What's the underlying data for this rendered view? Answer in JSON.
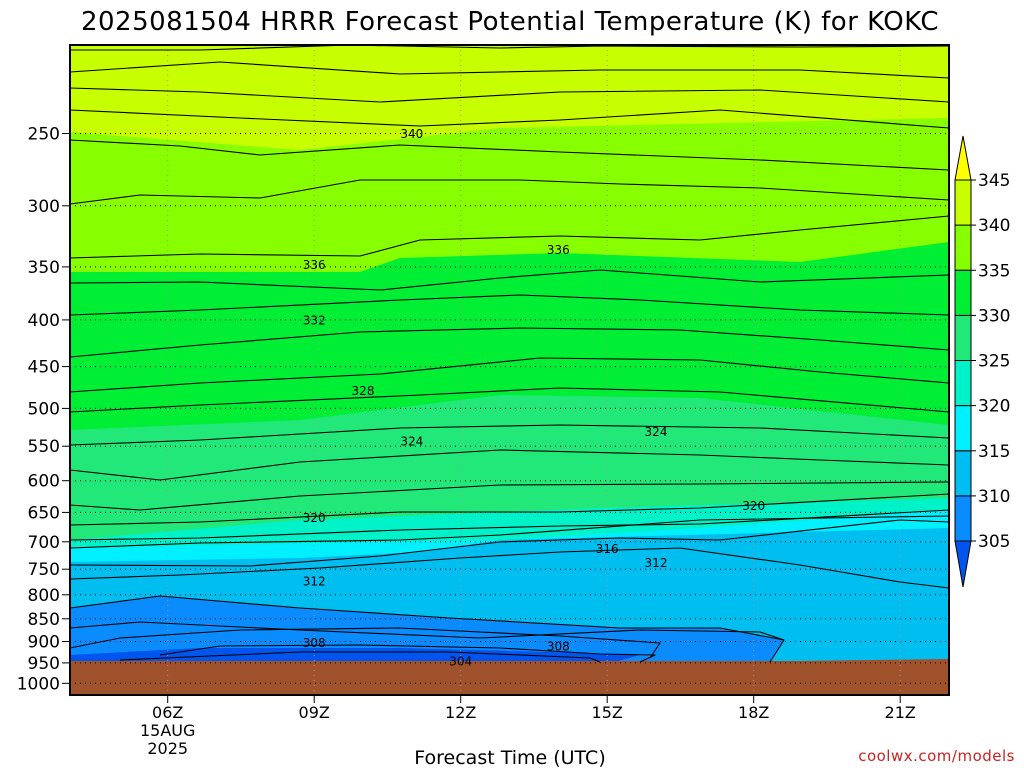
{
  "chart_data": {
    "type": "heatmap",
    "title": "2025081504 HRRR Forecast Potential Temperature (K) for KOKC",
    "xlabel": "Forecast Time (UTC)",
    "ylabel": "",
    "y_axis": {
      "scale": "log-pressure",
      "ticks": [
        250,
        300,
        350,
        400,
        450,
        500,
        550,
        600,
        650,
        700,
        750,
        800,
        850,
        900,
        950,
        1000
      ],
      "range_hPa": [
        200,
        1030
      ],
      "reversed": true
    },
    "x_axis": {
      "ticks": [
        "06Z",
        "09Z",
        "12Z",
        "15Z",
        "18Z",
        "21Z"
      ],
      "first_tick_sublabels": [
        "15AUG",
        "2025"
      ],
      "range_hours_utc": [
        "2025-08-15 04Z",
        "2025-08-15 22Z"
      ]
    },
    "grid": true,
    "colorbar": {
      "levels": [
        305,
        310,
        315,
        320,
        325,
        330,
        335,
        340,
        345
      ],
      "colors": [
        "#0055ee",
        "#0a8cff",
        "#00bff0",
        "#00f0ff",
        "#00f2c8",
        "#22e87a",
        "#00ee33",
        "#88ff00",
        "#c8ff00",
        "#ffff00"
      ],
      "extend": "both"
    },
    "ground_color": "#a0522d",
    "contour_interval_K": 2,
    "contour_labels": [
      {
        "value": 340,
        "time": "11Z",
        "p": 250
      },
      {
        "value": 336,
        "time": "09Z",
        "p": 348
      },
      {
        "value": 336,
        "time": "14Z",
        "p": 335
      },
      {
        "value": 332,
        "time": "09Z",
        "p": 400
      },
      {
        "value": 328,
        "time": "10Z",
        "p": 478
      },
      {
        "value": 324,
        "time": "11Z",
        "p": 543
      },
      {
        "value": 324,
        "time": "16Z",
        "p": 530
      },
      {
        "value": 320,
        "time": "09Z",
        "p": 658
      },
      {
        "value": 320,
        "time": "18Z",
        "p": 639
      },
      {
        "value": 316,
        "time": "15Z",
        "p": 712
      },
      {
        "value": 312,
        "time": "09Z",
        "p": 773
      },
      {
        "value": 312,
        "time": "16Z",
        "p": 737
      },
      {
        "value": 308,
        "time": "09Z",
        "p": 902
      },
      {
        "value": 308,
        "time": "14Z",
        "p": 910
      },
      {
        "value": 304,
        "time": "12Z",
        "p": 945
      }
    ]
  },
  "credit": "coolwx.com/models",
  "credit_color": "#cc2222"
}
